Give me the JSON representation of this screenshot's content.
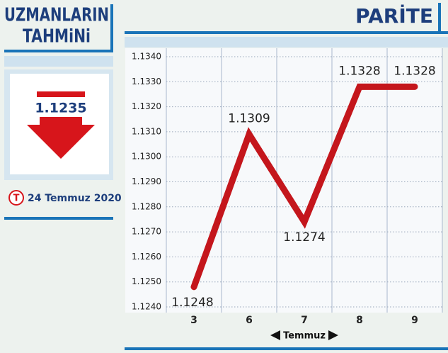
{
  "sidebar": {
    "title_lines": [
      "UZMANLARIN",
      "TAHMiNi"
    ],
    "forecast": 1.1235,
    "logo": "T",
    "date": "24 Temmuz 2020"
  },
  "chart_data": {
    "type": "line",
    "title": "PARİTE",
    "x_label": "Temmuz",
    "categories": [
      "3",
      "6",
      "7",
      "8",
      "9"
    ],
    "series": [
      {
        "name": "Parite",
        "color": "#c4161c",
        "values": [
          1.1248,
          1.1309,
          1.1274,
          1.1328,
          1.1328
        ]
      }
    ],
    "ylim": [
      1.124,
      1.134
    ],
    "yticks": [
      {
        "value": 1.124,
        "label": "1.1240"
      },
      {
        "value": 1.125,
        "label": "1.1250"
      },
      {
        "value": 1.126,
        "label": "1.1260"
      },
      {
        "value": 1.127,
        "label": "1.1270"
      },
      {
        "value": 1.128,
        "label": "1.1280"
      },
      {
        "value": 1.129,
        "label": "1.1290"
      },
      {
        "value": 1.13,
        "label": "1.1300"
      },
      {
        "value": 1.131,
        "label": "1.1310"
      },
      {
        "value": 1.132,
        "label": "1.1320"
      },
      {
        "value": 1.133,
        "label": "1.1330"
      },
      {
        "value": 1.134,
        "label": "1.1340"
      }
    ],
    "grid": true
  }
}
